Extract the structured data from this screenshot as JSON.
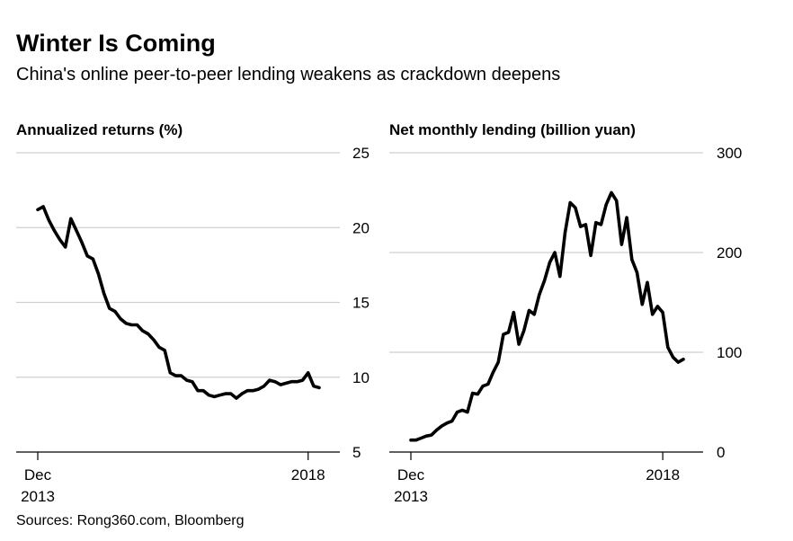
{
  "header": {
    "title": "Winter Is Coming",
    "subtitle": "China's online peer-to-peer lending weakens as crackdown deepens"
  },
  "footer": {
    "source": "Sources: Rong360.com, Bloomberg"
  },
  "chart_data": [
    {
      "type": "line",
      "title": "Annualized returns (%)",
      "ylim": [
        5,
        25
      ],
      "yticks": [
        5,
        10,
        15,
        20,
        25
      ],
      "ytick_labels": [
        "5",
        "10",
        "15",
        "20",
        "25"
      ],
      "xticks": [
        0,
        49
      ],
      "xtick_labels": [
        "Dec\n2013",
        "2018"
      ],
      "grid": true,
      "series": [
        {
          "values": [
            21.2,
            21.4,
            20.5,
            19.8,
            19.2,
            18.7,
            20.6,
            19.8,
            19.0,
            18.1,
            17.9,
            16.9,
            15.6,
            14.6,
            14.4,
            13.9,
            13.6,
            13.5,
            13.5,
            13.1,
            12.9,
            12.5,
            12.0,
            11.8,
            10.3,
            10.1,
            10.1,
            9.8,
            9.7,
            9.1,
            9.1,
            8.8,
            8.7,
            8.8,
            8.9,
            8.9,
            8.6,
            8.9,
            9.1,
            9.1,
            9.2,
            9.4,
            9.8,
            9.7,
            9.5,
            9.6,
            9.7,
            9.7,
            9.8,
            10.3,
            9.4,
            9.3
          ]
        }
      ]
    },
    {
      "type": "line",
      "title": "Net monthly lending (billion yuan)",
      "ylim": [
        0,
        300
      ],
      "yticks": [
        0,
        100,
        200,
        300
      ],
      "ytick_labels": [
        "0",
        "100",
        "200",
        "300"
      ],
      "xticks": [
        0,
        49
      ],
      "xtick_labels": [
        "Dec\n2013",
        "2018"
      ],
      "grid": true,
      "series": [
        {
          "values": [
            12,
            12,
            14,
            16,
            17,
            22,
            26,
            29,
            31,
            40,
            42,
            40,
            59,
            58,
            66,
            68,
            80,
            90,
            118,
            120,
            140,
            108,
            122,
            142,
            138,
            158,
            172,
            190,
            200,
            176,
            220,
            250,
            245,
            226,
            228,
            197,
            230,
            228,
            248,
            260,
            252,
            208,
            235,
            193,
            180,
            148,
            170,
            138,
            146,
            140,
            105,
            95,
            90,
            93
          ]
        }
      ]
    }
  ]
}
